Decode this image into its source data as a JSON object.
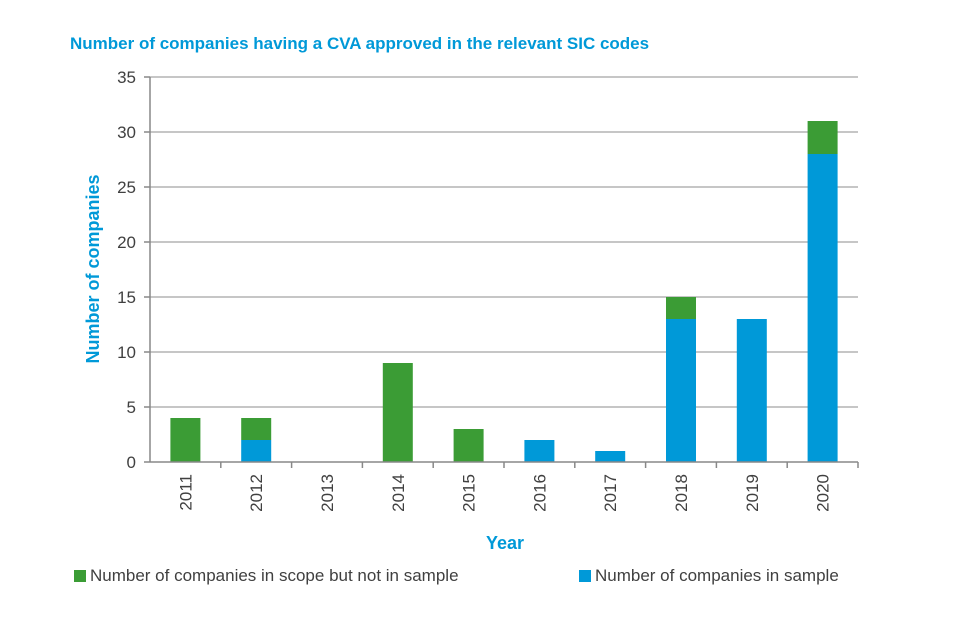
{
  "chart_data": {
    "type": "bar",
    "stacked": true,
    "title": "Number of companies  having a CVA approved in the relevant  SIC codes",
    "xlabel": "Year",
    "ylabel": "Number of companies",
    "ylim": [
      0,
      35
    ],
    "yticks": [
      0,
      5,
      10,
      15,
      20,
      25,
      30,
      35
    ],
    "grid": true,
    "legend_position": "bottom",
    "categories": [
      "2011",
      "2012",
      "2013",
      "2014",
      "2015",
      "2016",
      "2017",
      "2018",
      "2019",
      "2020"
    ],
    "series": [
      {
        "name": "Number of companies in sample",
        "color": "#0099d8",
        "values": [
          0,
          2,
          0,
          0,
          0,
          2,
          1,
          13,
          13,
          28
        ]
      },
      {
        "name": "Number of companies in scope but not in sample",
        "color": "#3b9c35",
        "values": [
          4,
          2,
          0,
          9,
          3,
          0,
          0,
          2,
          0,
          3
        ]
      }
    ]
  }
}
